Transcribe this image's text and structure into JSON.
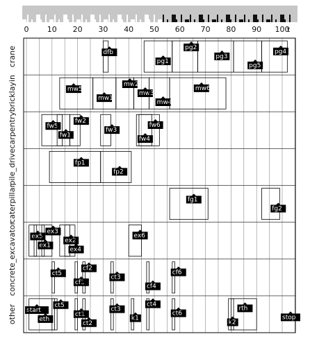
{
  "chart_data": {
    "type": "gantt",
    "x_ticks": [
      "0",
      "10",
      "20",
      "30",
      "40",
      "50",
      "60",
      "70",
      "80",
      "90",
      "100"
    ],
    "x_end_label": "t",
    "xlim": [
      0,
      105
    ],
    "grid": true,
    "lanes": [
      "crane",
      "bricklayin",
      "carpentry",
      "pile_drive",
      "caterpillar",
      "excavator",
      "concrete_",
      "other"
    ],
    "tasks": [
      {
        "lane": "crane",
        "label": "dfb",
        "start": 30,
        "end": 32,
        "ref": 30
      },
      {
        "lane": "crane",
        "label": "pg1",
        "start": 46,
        "end": 57,
        "ref": 51
      },
      {
        "lane": "crane",
        "label": "pg2",
        "start": 57,
        "end": 67,
        "ref": 62
      },
      {
        "lane": "crane",
        "label": "pg3",
        "start": 67,
        "end": 81,
        "ref": 74
      },
      {
        "lane": "crane",
        "label": "pg5",
        "start": 81,
        "end": 92,
        "ref": 87
      },
      {
        "lane": "crane",
        "label": "pg4",
        "start": 92,
        "end": 102,
        "ref": 97
      },
      {
        "lane": "bricklayin",
        "label": "mw5",
        "start": 13,
        "end": 26,
        "ref": 16
      },
      {
        "lane": "bricklayin",
        "label": "mw1",
        "start": 26,
        "end": 35,
        "ref": 28
      },
      {
        "lane": "bricklayin",
        "label": "mw2",
        "start": 35,
        "end": 42,
        "ref": 38
      },
      {
        "lane": "bricklayin",
        "label": "mw3",
        "start": 42,
        "end": 48,
        "ref": 44
      },
      {
        "lane": "bricklayin",
        "label": "mw4",
        "start": 48,
        "end": 56,
        "ref": 51
      },
      {
        "lane": "bricklayin",
        "label": "mw6",
        "start": 56,
        "end": 78,
        "ref": 66
      },
      {
        "lane": "carpentry",
        "label": "fw5",
        "start": 6,
        "end": 14,
        "ref": 8
      },
      {
        "lane": "carpentry",
        "label": "fw1",
        "start": 12,
        "end": 17,
        "ref": 13
      },
      {
        "lane": "carpentry",
        "label": "fw2",
        "start": 17,
        "end": 21,
        "ref": 19
      },
      {
        "lane": "carpentry",
        "label": "fw3",
        "start": 29,
        "end": 33,
        "ref": 31
      },
      {
        "lane": "carpentry",
        "label": "fw4",
        "start": 43,
        "end": 49,
        "ref": 44
      },
      {
        "lane": "carpentry",
        "label": "fw6",
        "start": 44,
        "end": 52,
        "ref": 48
      },
      {
        "lane": "pile_drive",
        "label": "fp1",
        "start": 9,
        "end": 29,
        "ref": 19
      },
      {
        "lane": "pile_drive",
        "label": "fp2",
        "start": 29,
        "end": 41,
        "ref": 34
      },
      {
        "lane": "caterpillar",
        "label": "fg1",
        "start": 56,
        "end": 71,
        "ref": 63
      },
      {
        "lane": "caterpillar",
        "label": "fg2",
        "start": 92,
        "end": 99,
        "ref": 96
      },
      {
        "lane": "excavator",
        "label": "ex5",
        "start": 1,
        "end": 4,
        "ref": 2
      },
      {
        "lane": "excavator",
        "label": "ex1",
        "start": 3,
        "end": 7,
        "ref": 5
      },
      {
        "lane": "excavator",
        "label": "ex3",
        "start": 6,
        "end": 10,
        "ref": 8
      },
      {
        "lane": "excavator",
        "label": "ex2",
        "start": 13,
        "end": 17,
        "ref": 15
      },
      {
        "lane": "excavator",
        "label": "ex4",
        "start": 15,
        "end": 19,
        "ref": 17
      },
      {
        "lane": "excavator",
        "label": "ex6",
        "start": 40,
        "end": 45,
        "ref": 42
      },
      {
        "lane": "concrete_",
        "label": "ct5",
        "start": 10,
        "end": 11,
        "ref": 10
      },
      {
        "lane": "concrete_",
        "label": "cf1",
        "start": 19,
        "end": 20,
        "ref": 19
      },
      {
        "lane": "concrete_",
        "label": "cf2",
        "start": 22,
        "end": 23,
        "ref": 22
      },
      {
        "lane": "concrete_",
        "label": "ct3",
        "start": 33,
        "end": 34,
        "ref": 33
      },
      {
        "lane": "concrete_",
        "label": "cf4",
        "start": 47,
        "end": 48,
        "ref": 47
      },
      {
        "lane": "concrete_",
        "label": "cf6",
        "start": 57,
        "end": 58,
        "ref": 57
      },
      {
        "lane": "other",
        "label": "start",
        "start": 0,
        "end": 0,
        "ref": 0
      },
      {
        "lane": "other",
        "label": "eth",
        "start": 1,
        "end": 12,
        "ref": 5
      },
      {
        "lane": "other",
        "label": "ct5",
        "start": 10,
        "end": 11,
        "ref": 11
      },
      {
        "lane": "other",
        "label": "ct1",
        "start": 19,
        "end": 20,
        "ref": 19
      },
      {
        "lane": "other",
        "label": "ct2",
        "start": 22,
        "end": 23,
        "ref": 22
      },
      {
        "lane": "other",
        "label": "ct3",
        "start": 33,
        "end": 34,
        "ref": 33
      },
      {
        "lane": "other",
        "label": "k1",
        "start": 41,
        "end": 42,
        "ref": 41
      },
      {
        "lane": "other",
        "label": "ct4",
        "start": 47,
        "end": 48,
        "ref": 47
      },
      {
        "lane": "other",
        "label": "ct6",
        "start": 57,
        "end": 58,
        "ref": 57
      },
      {
        "lane": "other",
        "label": "k2",
        "start": 79,
        "end": 81,
        "ref": 79
      },
      {
        "lane": "other",
        "label": "rth",
        "start": 80,
        "end": 90,
        "ref": 83
      },
      {
        "lane": "other",
        "label": "stop",
        "start": 100,
        "end": 100,
        "ref": 100
      }
    ]
  },
  "colors": {
    "strip": "#c7c7c7",
    "label_bg": "#000000",
    "label_fg": "#ffffff",
    "grid": "#888888",
    "bar_edge": "#000000"
  }
}
